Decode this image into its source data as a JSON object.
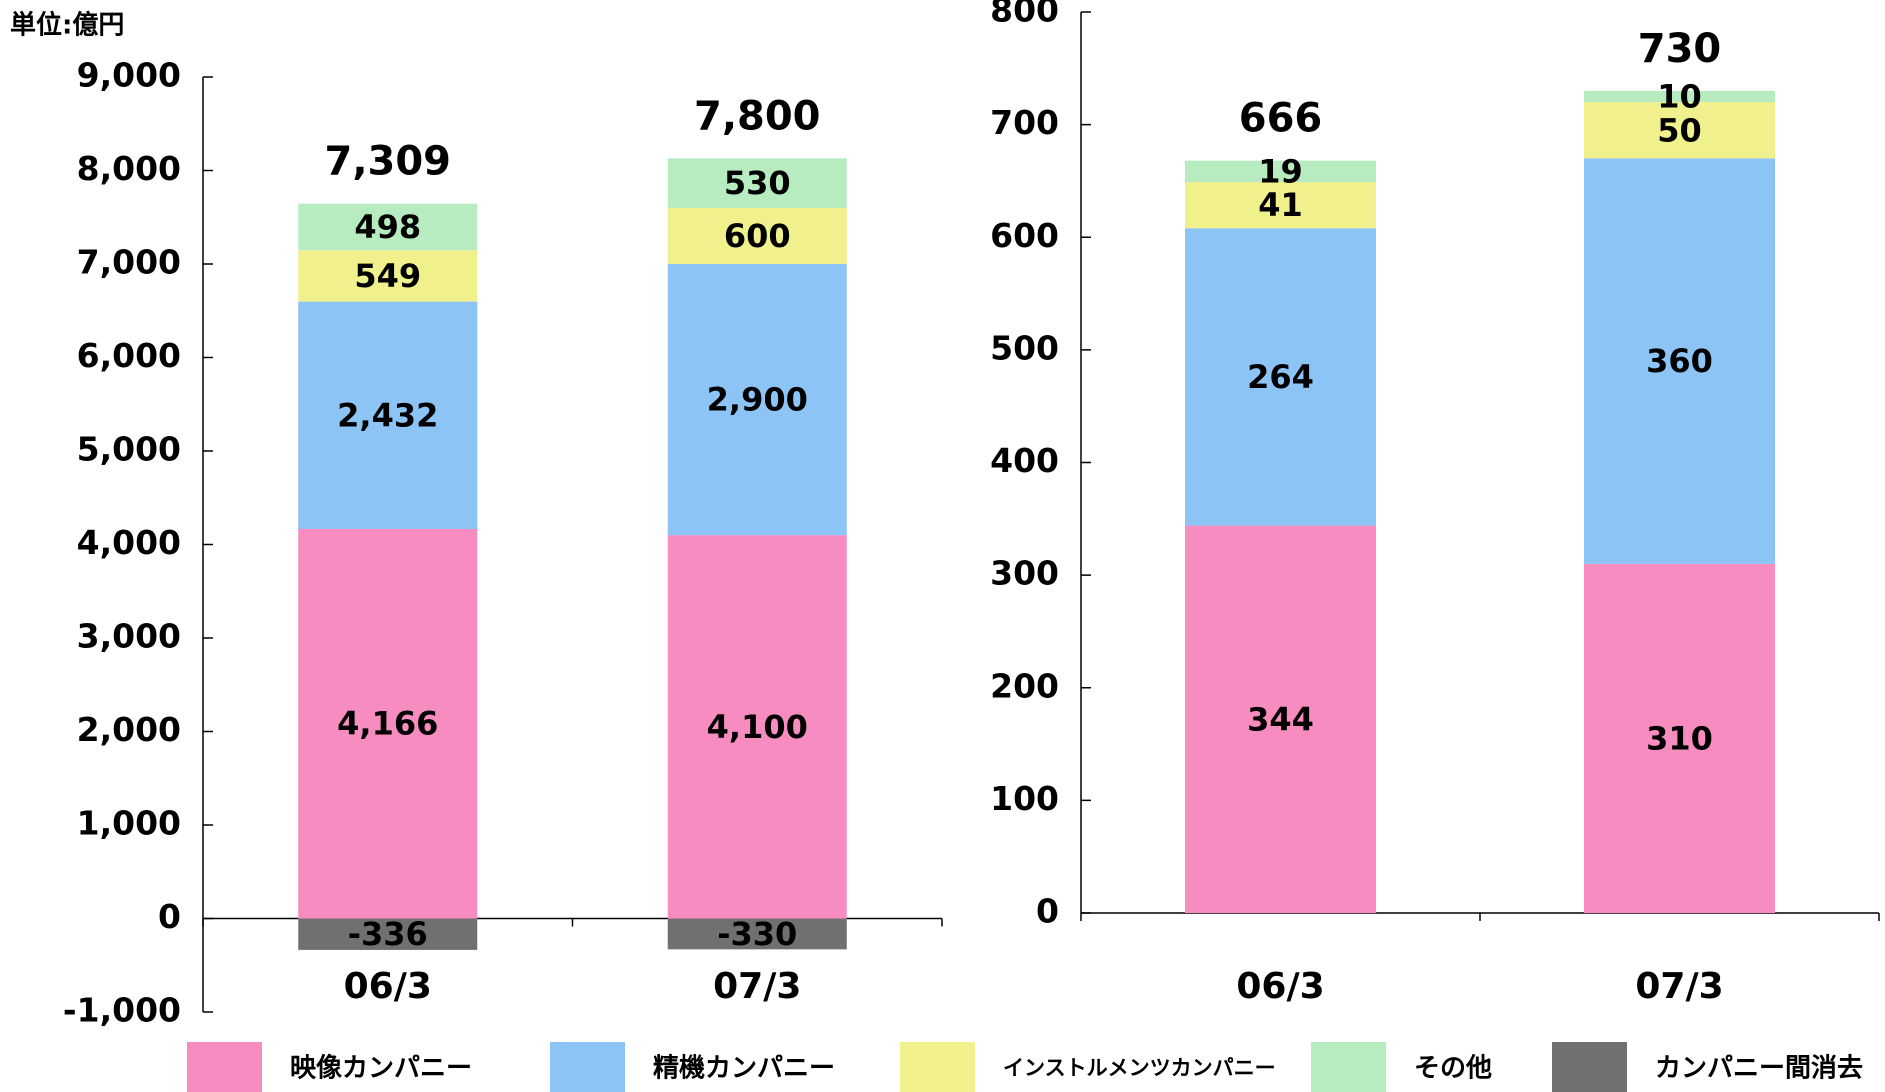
{
  "chart_data": [
    {
      "type": "bar",
      "stacked": true,
      "unit_label": "単位:億円",
      "categories": [
        "06/3",
        "07/3"
      ],
      "ylim": [
        -1000,
        9000
      ],
      "yticks": [
        {
          "value": -1000,
          "label": "-1,000"
        },
        0,
        {
          "value": 1000,
          "label": "1,000"
        },
        {
          "value": 2000,
          "label": "2,000"
        },
        {
          "value": 3000,
          "label": "3,000"
        },
        {
          "value": 4000,
          "label": "4,000"
        },
        {
          "value": 5000,
          "label": "5,000"
        },
        {
          "value": 6000,
          "label": "6,000"
        },
        {
          "value": 7000,
          "label": "7,000"
        },
        {
          "value": 8000,
          "label": "8,000"
        },
        {
          "value": 9000,
          "label": "9,000"
        }
      ],
      "series": [
        {
          "name": "映像カンパニー",
          "color": "#f78cc0",
          "values": [
            4166,
            4100
          ],
          "value_labels": [
            "4,166",
            "4,100"
          ]
        },
        {
          "name": "精機カンパニー",
          "color": "#8cc4f5",
          "values": [
            2432,
            2900
          ],
          "value_labels": [
            "2,432",
            "2,900"
          ]
        },
        {
          "name": "インストルメンツカンパニー",
          "color": "#f0f08c",
          "values": [
            549,
            600
          ]
        },
        {
          "name": "その他",
          "color": "#b6ecc0",
          "values": [
            498,
            530
          ]
        },
        {
          "name": "カンパニー間消去",
          "color": "#707070",
          "values": [
            -336,
            -330
          ]
        }
      ],
      "totals": {
        "values": [
          7309,
          7800
        ],
        "value_labels": [
          "7,309",
          "7,800"
        ]
      }
    },
    {
      "type": "bar",
      "stacked": true,
      "categories": [
        "06/3",
        "07/3"
      ],
      "ylim": [
        0,
        800
      ],
      "yticks": [
        0,
        100,
        200,
        300,
        400,
        500,
        600,
        700,
        800
      ],
      "series": [
        {
          "color": "#f78cc0",
          "values": [
            344,
            310
          ]
        },
        {
          "color": "#8cc4f5",
          "values": [
            264,
            360
          ]
        },
        {
          "color": "#f0f08c",
          "values": [
            41,
            50
          ]
        },
        {
          "color": "#b6ecc0",
          "values": [
            19,
            10
          ]
        }
      ],
      "totals": {
        "values": [
          666,
          730
        ]
      }
    }
  ]
}
